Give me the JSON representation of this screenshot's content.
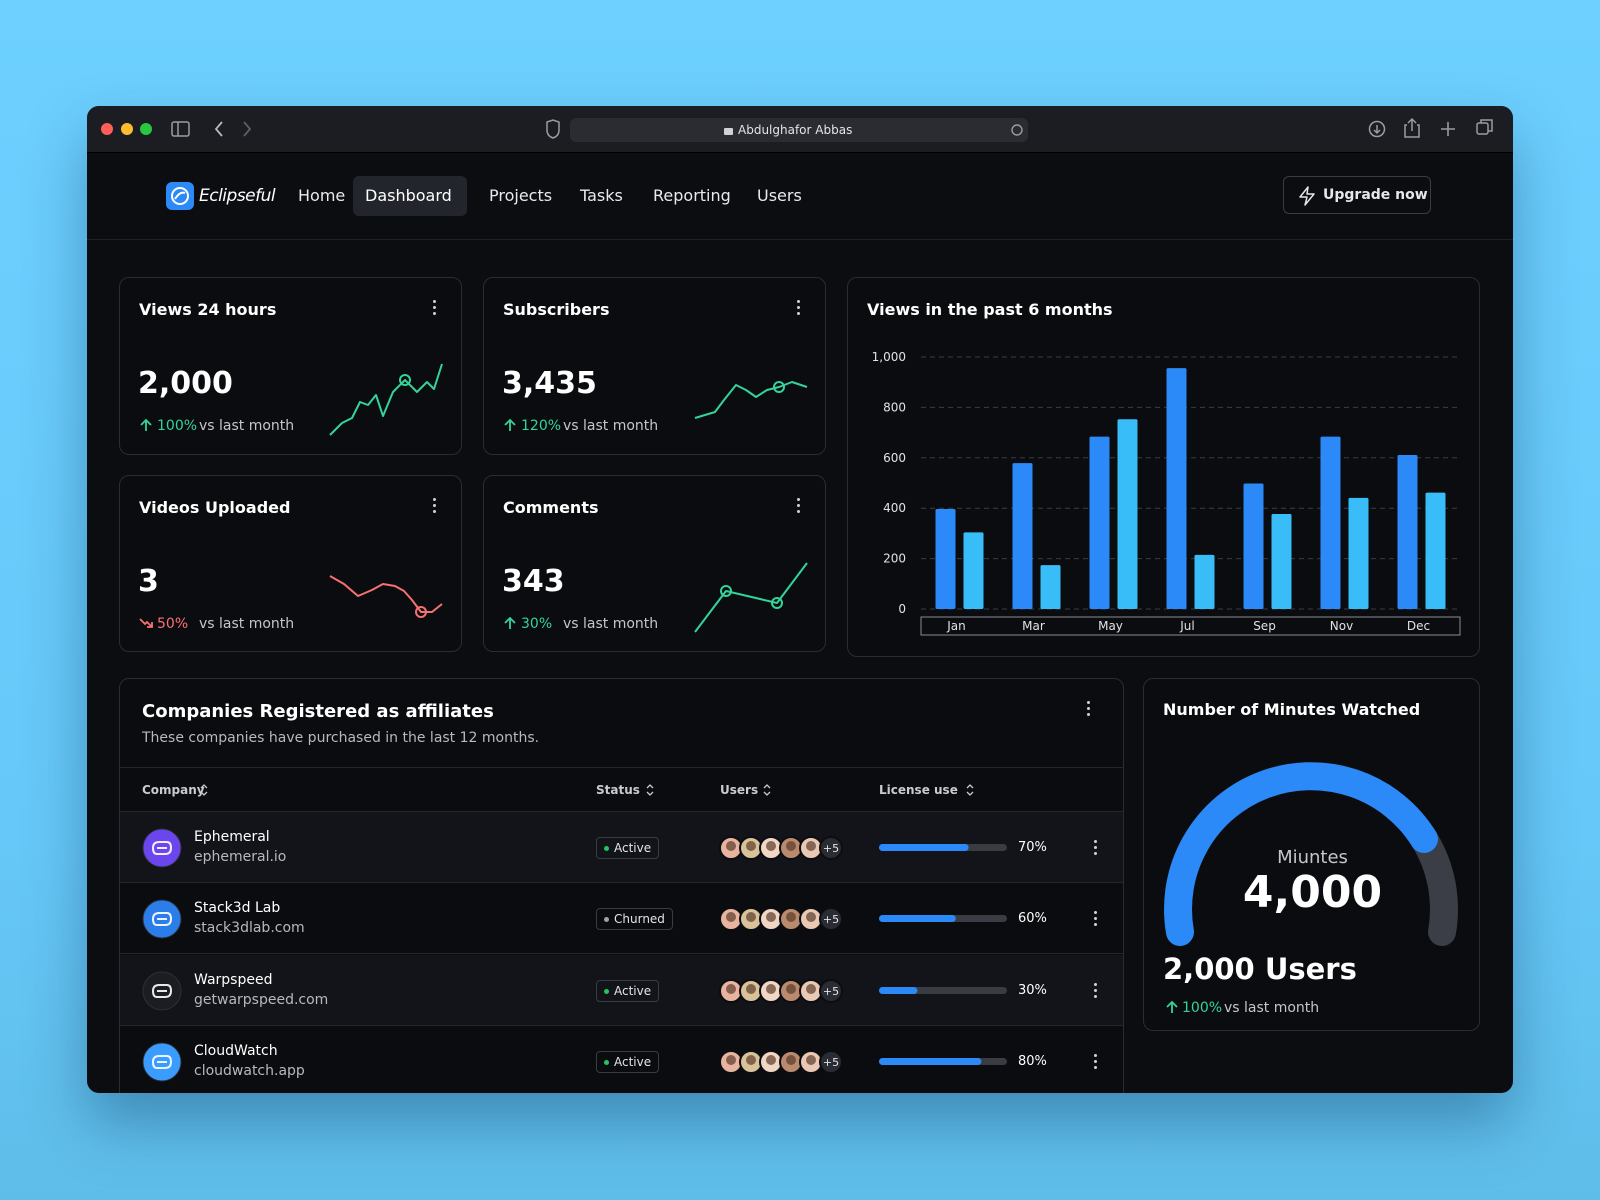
{
  "browser": {
    "url": "Abdulghafor Abbas"
  },
  "nav": {
    "brand": "Eclipseful",
    "items": [
      "Home",
      "Dashboard",
      "Projects",
      "Tasks",
      "Reporting",
      "Users"
    ],
    "active": 1,
    "button": "Upgrade now"
  },
  "cards": [
    {
      "title": "Views 24 hours",
      "value": "2,000",
      "change": "100%",
      "trend": "up",
      "comparison": "vs last month"
    },
    {
      "title": "Subscribers",
      "value": "3,435",
      "change": "120%",
      "trend": "up",
      "comparison": "vs last month"
    },
    {
      "title": "Videos Uploaded",
      "value": "3",
      "change": "50%",
      "trend": "down",
      "comparison": "vs last month"
    },
    {
      "title": "Comments",
      "value": "343",
      "change": "30%",
      "trend": "up",
      "comparison": "vs last month"
    }
  ],
  "chart_data": {
    "type": "bar",
    "title": "Views in the past 6 months",
    "categories": [
      "Jan",
      "Mar",
      "May",
      "Jul",
      "Sep",
      "Nov",
      "Dec"
    ],
    "series": [
      {
        "color": "#2b8af7",
        "values": [
          397,
          579,
          684,
          956,
          498,
          684,
          611
        ]
      },
      {
        "color": "#38bdf8",
        "values": [
          304,
          174,
          753,
          215,
          377,
          441,
          462
        ]
      }
    ],
    "ylim": [
      0,
      1000
    ],
    "yticks": [
      0,
      200,
      400,
      600,
      800,
      {
        "value": 1000,
        "label": "1,000"
      }
    ],
    "grid": true
  },
  "table": {
    "title": "Companies Registered as affiliates",
    "subtitle": "These companies have purchased in the last 12 months.",
    "columns": [
      "Company",
      "Status",
      "Users",
      "License use"
    ],
    "rows": [
      {
        "name": "Ephemeral",
        "domain": "ephemeral.io",
        "status": "Active",
        "extra_users": "+5",
        "license": 70,
        "license_label": "70%"
      },
      {
        "name": "Stack3d Lab",
        "domain": "stack3dlab.com",
        "status": "Churned",
        "extra_users": "+5",
        "license": 60,
        "license_label": "60%"
      },
      {
        "name": "Warpspeed",
        "domain": "getwarpspeed.com",
        "status": "Active",
        "extra_users": "+5",
        "license": 30,
        "license_label": "30%"
      },
      {
        "name": "CloudWatch",
        "domain": "cloudwatch.app",
        "status": "Active",
        "extra_users": "+5",
        "license": 80,
        "license_label": "80%"
      }
    ]
  },
  "gauge": {
    "title": "Number of Minutes Watched",
    "label": "Miuntes",
    "value": "4,000",
    "users": "2,000 Users",
    "change": "100%",
    "comparison": "vs last month"
  }
}
